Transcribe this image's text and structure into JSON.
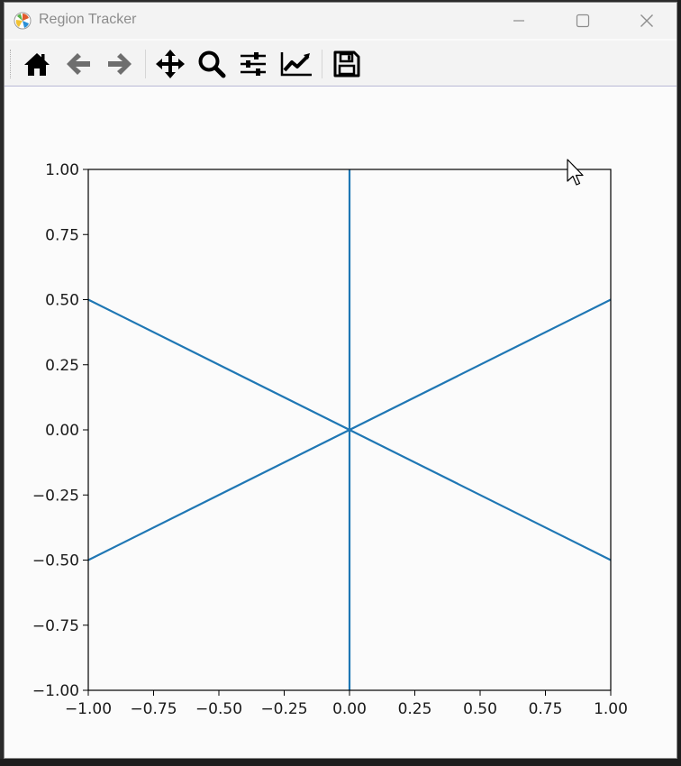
{
  "window": {
    "title": "Region Tracker",
    "app_icon": "matplotlib-icon",
    "controls": {
      "minimize": "minimize-icon",
      "maximize": "maximize-icon",
      "close": "close-icon"
    }
  },
  "toolbar": {
    "buttons": [
      {
        "name": "home",
        "icon": "home-icon"
      },
      {
        "name": "back",
        "icon": "arrow-left-icon"
      },
      {
        "name": "forward",
        "icon": "arrow-right-icon"
      },
      {
        "name": "pan",
        "icon": "move-icon"
      },
      {
        "name": "zoom",
        "icon": "zoom-icon"
      },
      {
        "name": "subplots",
        "icon": "sliders-icon"
      },
      {
        "name": "customize",
        "icon": "line-chart-icon"
      },
      {
        "name": "save",
        "icon": "save-icon"
      }
    ]
  },
  "chart_data": {
    "type": "line",
    "title": "",
    "xlabel": "",
    "ylabel": "",
    "xlim": [
      -1.0,
      1.0
    ],
    "ylim": [
      -1.0,
      1.0
    ],
    "xticks": [
      "−1.00",
      "−0.75",
      "−0.50",
      "−0.25",
      "0.00",
      "0.25",
      "0.50",
      "0.75",
      "1.00"
    ],
    "yticks": [
      "−1.00",
      "−0.75",
      "−0.50",
      "−0.25",
      "0.00",
      "0.25",
      "0.50",
      "0.75",
      "1.00"
    ],
    "xtick_values": [
      -1.0,
      -0.75,
      -0.5,
      -0.25,
      0.0,
      0.25,
      0.5,
      0.75,
      1.0
    ],
    "ytick_values": [
      -1.0,
      -0.75,
      -0.5,
      -0.25,
      0.0,
      0.25,
      0.5,
      0.75,
      1.0
    ],
    "grid": false,
    "series": [
      {
        "x": [
          0.0,
          0.0
        ],
        "y": [
          -1.0,
          1.0
        ],
        "color": "#1f77b4"
      },
      {
        "x": [
          -1.0,
          1.0
        ],
        "y": [
          -0.5,
          0.5
        ],
        "color": "#1f77b4"
      },
      {
        "x": [
          -1.0,
          1.0
        ],
        "y": [
          0.5,
          -0.5
        ],
        "color": "#1f77b4"
      }
    ]
  },
  "colors": {
    "line": "#1f77b4",
    "axes": "#000000",
    "window_bg": "#fafafa",
    "toolbar_bg": "#f3f3f3"
  }
}
